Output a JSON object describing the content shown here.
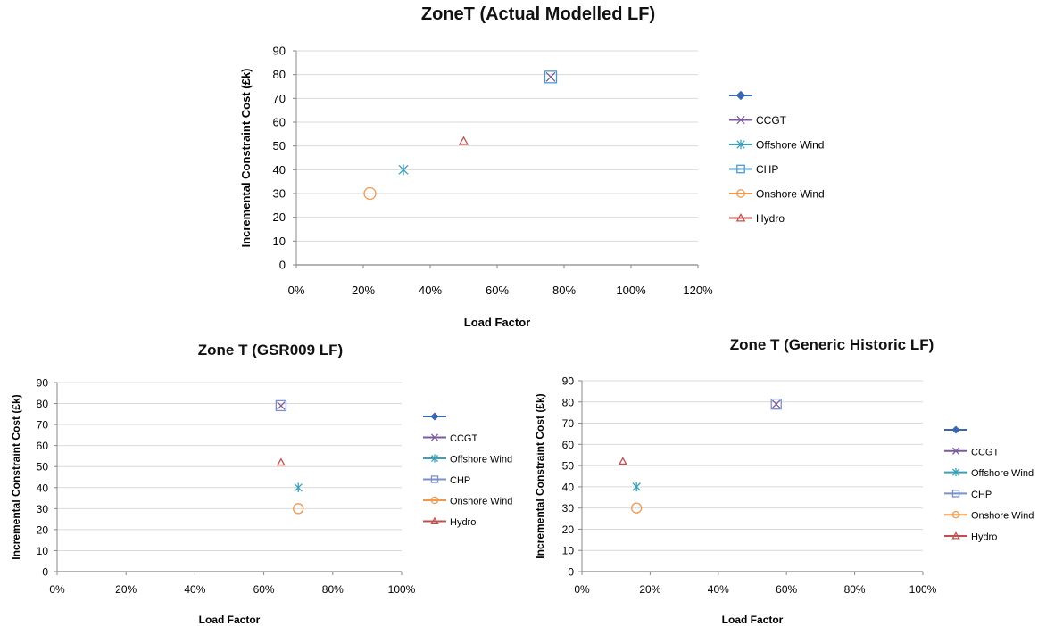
{
  "chart_data": [
    {
      "type": "scatter",
      "title": "ZoneT (Actual Modelled LF)",
      "xlabel": "Load Factor",
      "ylabel": "Incremental Constraint Cost (£k)",
      "xlim": [
        0,
        1.2
      ],
      "ylim": [
        0,
        90
      ],
      "x_ticks": [
        "0%",
        "20%",
        "40%",
        "60%",
        "80%",
        "100%",
        "120%"
      ],
      "y_ticks": [
        "0",
        "10",
        "20",
        "30",
        "40",
        "50",
        "60",
        "70",
        "80",
        "90"
      ],
      "grid": true,
      "legend_position": "right",
      "series": [
        {
          "name": "",
          "marker": "diamond",
          "color": "#3a67b0",
          "points": []
        },
        {
          "name": "CCGT",
          "marker": "x",
          "color": "#7a5b9e",
          "points": [
            [
              0.76,
              79
            ]
          ]
        },
        {
          "name": "Offshore Wind",
          "marker": "star",
          "color": "#3aa0b8",
          "points": [
            [
              0.32,
              40
            ]
          ]
        },
        {
          "name": "CHP",
          "marker": "square",
          "color": "#4a9ad0",
          "points": [
            [
              0.76,
              79
            ]
          ]
        },
        {
          "name": "Onshore Wind",
          "marker": "circle",
          "color": "#f09850",
          "points": [
            [
              0.22,
              30
            ]
          ]
        },
        {
          "name": "Hydro",
          "marker": "triangle",
          "color": "#c0504d",
          "points": [
            [
              0.5,
              52
            ]
          ]
        }
      ]
    },
    {
      "type": "scatter",
      "title": "Zone T (GSR009 LF)",
      "xlabel": "Load Factor",
      "ylabel": "Incremental Constraint Cost (£k)",
      "xlim": [
        0,
        1.0
      ],
      "ylim": [
        0,
        90
      ],
      "x_ticks": [
        "0%",
        "20%",
        "40%",
        "60%",
        "80%",
        "100%"
      ],
      "y_ticks": [
        "0",
        "10",
        "20",
        "30",
        "40",
        "50",
        "60",
        "70",
        "80",
        "90"
      ],
      "grid": true,
      "legend_position": "right",
      "series": [
        {
          "name": "",
          "marker": "diamond",
          "color": "#3a67b0",
          "points": []
        },
        {
          "name": "CCGT",
          "marker": "x",
          "color": "#7a5b9e",
          "points": [
            [
              0.65,
              79
            ]
          ]
        },
        {
          "name": "Offshore Wind",
          "marker": "star",
          "color": "#3aa0b8",
          "points": [
            [
              0.7,
              40
            ]
          ]
        },
        {
          "name": "CHP",
          "marker": "square",
          "color": "#7e90cc",
          "points": [
            [
              0.65,
              79
            ]
          ]
        },
        {
          "name": "Onshore Wind",
          "marker": "circle",
          "color": "#f09850",
          "points": [
            [
              0.7,
              30
            ]
          ]
        },
        {
          "name": "Hydro",
          "marker": "triangle",
          "color": "#c0504d",
          "points": [
            [
              0.65,
              52
            ]
          ]
        }
      ]
    },
    {
      "type": "scatter",
      "title": "Zone T (Generic Historic LF)",
      "xlabel": "Load Factor",
      "ylabel": "Incremental Constraint Cost (£k)",
      "xlim": [
        0,
        1.0
      ],
      "ylim": [
        0,
        90
      ],
      "x_ticks": [
        "0%",
        "20%",
        "40%",
        "60%",
        "80%",
        "100%"
      ],
      "y_ticks": [
        "0",
        "10",
        "20",
        "30",
        "40",
        "50",
        "60",
        "70",
        "80",
        "90"
      ],
      "grid": true,
      "legend_position": "right",
      "series": [
        {
          "name": "",
          "marker": "diamond",
          "color": "#3a67b0",
          "points": []
        },
        {
          "name": "CCGT",
          "marker": "x",
          "color": "#7a5b9e",
          "points": [
            [
              0.57,
              79
            ]
          ]
        },
        {
          "name": "Offshore Wind",
          "marker": "star",
          "color": "#3aa0b8",
          "points": [
            [
              0.16,
              40
            ]
          ]
        },
        {
          "name": "CHP",
          "marker": "square",
          "color": "#7e90cc",
          "points": [
            [
              0.57,
              79
            ]
          ]
        },
        {
          "name": "Onshore Wind",
          "marker": "circle",
          "color": "#f09850",
          "points": [
            [
              0.16,
              30
            ]
          ]
        },
        {
          "name": "Hydro",
          "marker": "triangle",
          "color": "#c0504d",
          "points": [
            [
              0.12,
              52
            ]
          ]
        }
      ]
    }
  ]
}
